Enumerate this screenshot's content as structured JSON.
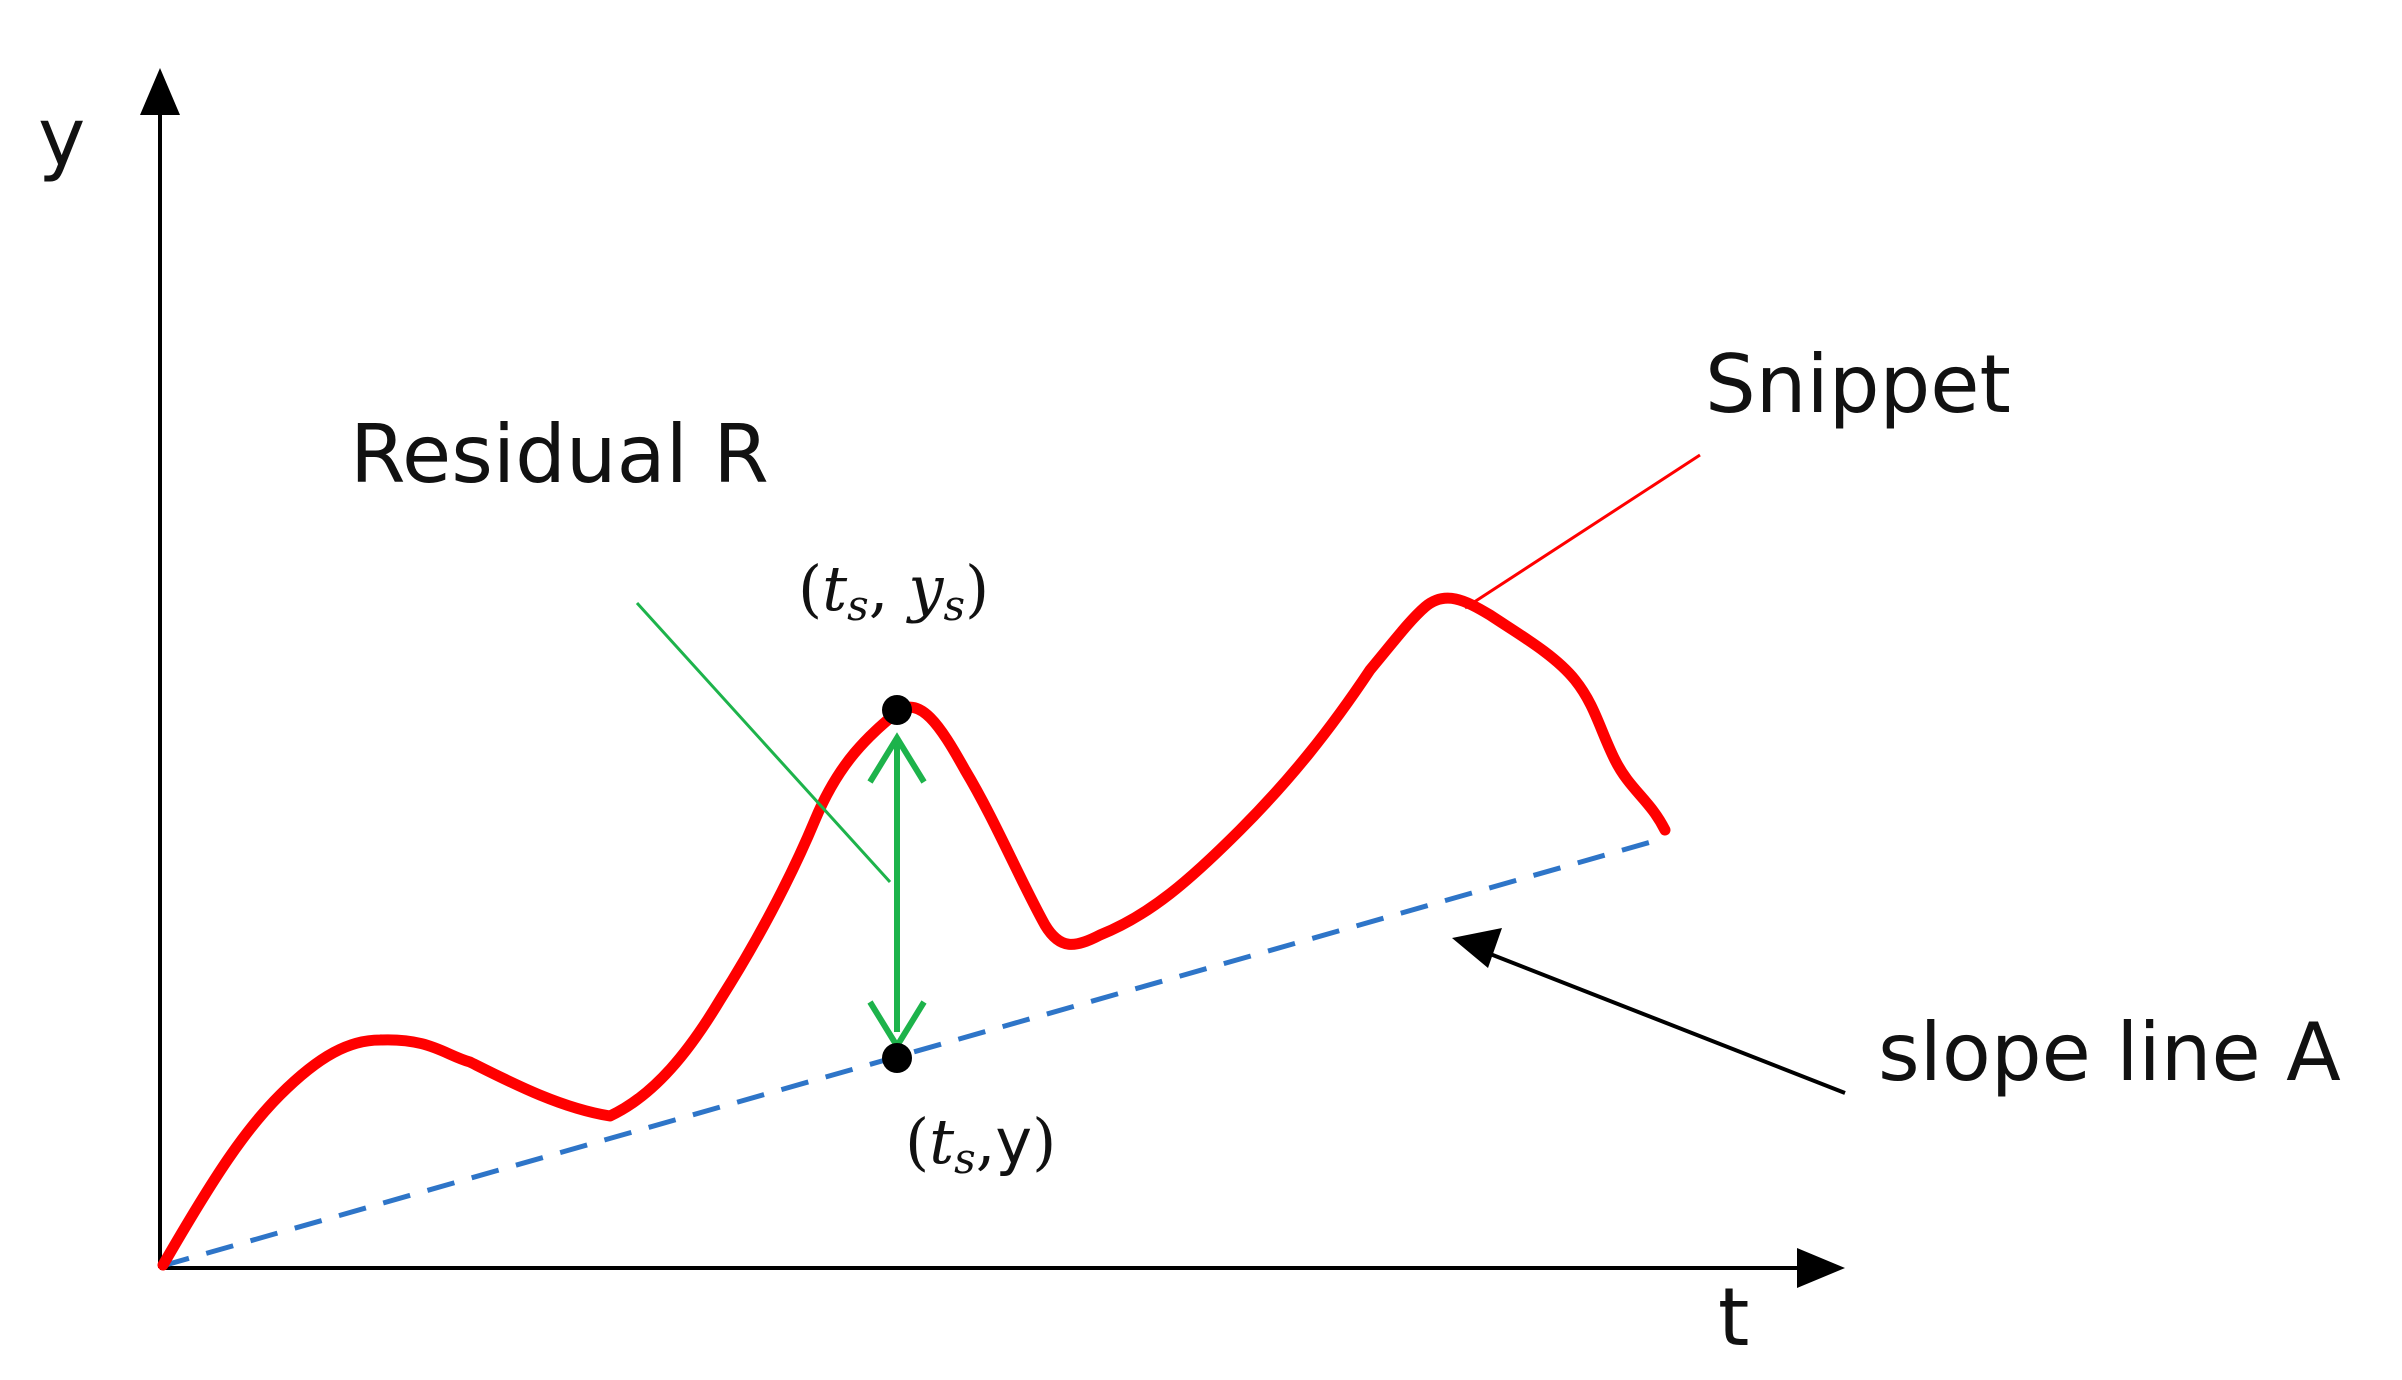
{
  "axes": {
    "y_label": "y",
    "x_label": "t"
  },
  "labels": {
    "residual": "Residual R",
    "snippet": "Snippet",
    "slope_line": "slope line A"
  },
  "points": {
    "peak": {
      "open": "(",
      "t": "t",
      "ts_sub": "s",
      "comma": ",",
      "y": "y",
      "ys_sub": "s",
      "close": ")"
    },
    "base": {
      "open": "(",
      "t": "t",
      "ts_sub": "s",
      "comma": ",",
      "y": "y",
      "close": ")"
    }
  },
  "colors": {
    "snippet_curve": "#ff0000",
    "slope_line": "#2e75c8",
    "residual_arrow": "#1db34b",
    "axis": "#000000",
    "point": "#000000"
  }
}
